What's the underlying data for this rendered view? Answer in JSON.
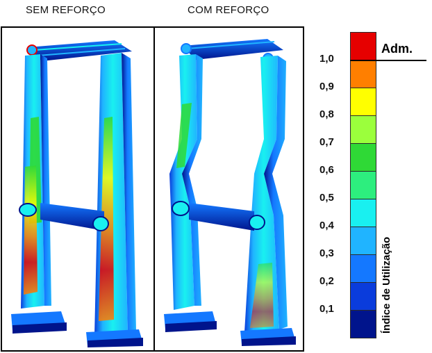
{
  "panels": {
    "left_title": "SEM REFORÇO",
    "right_title": "COM REFORÇO"
  },
  "legend": {
    "adm_label": "Adm.",
    "axis_label": "Índice de Utilização",
    "ticks": [
      "1,0",
      "0,9",
      "0,8",
      "0,7",
      "0,6",
      "0,5",
      "0,4",
      "0,3",
      "0,2",
      "0,1"
    ],
    "colors": [
      "#e60000",
      "#ff7f00",
      "#ffff00",
      "#9bff3c",
      "#2fd936",
      "#2dee7e",
      "#19f0f0",
      "#20b4ff",
      "#1478ff",
      "#0a3cdc",
      "#00148c"
    ]
  }
}
